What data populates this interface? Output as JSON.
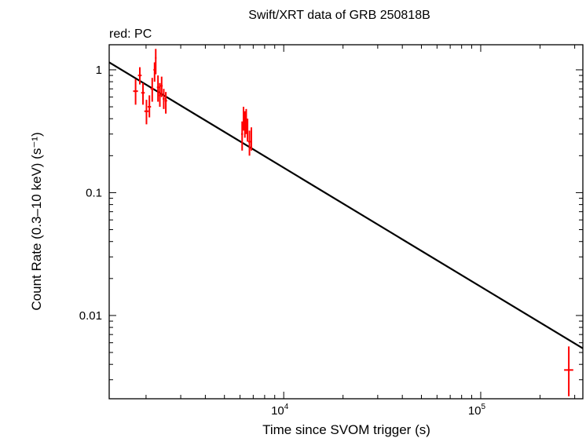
{
  "chart_data": {
    "type": "scatter",
    "title": "Swift/XRT data of GRB 250818B",
    "subtitle": "red: PC",
    "xlabel": "Time since SVOM trigger (s)",
    "ylabel": "Count Rate (0.3–10 keV) (s⁻¹)",
    "xscale": "log",
    "yscale": "log",
    "xlim": [
      1300,
      330000
    ],
    "ylim": [
      0.0021,
      1.6
    ],
    "x_ticklabels": [
      {
        "value": 10000,
        "base": "10",
        "exp": "4"
      },
      {
        "value": 100000,
        "base": "10",
        "exp": "5"
      }
    ],
    "y_ticklabels": [
      {
        "value": 1,
        "label": "1"
      },
      {
        "value": 0.1,
        "label": "0.1"
      },
      {
        "value": 0.01,
        "label": "0.01"
      }
    ],
    "grid": false,
    "series": [
      {
        "mode": "points",
        "color": "#ff0000",
        "points": [
          {
            "x": 1770,
            "xlo": 1720,
            "xhi": 1820,
            "y": 0.67,
            "ylo": 0.52,
            "yhi": 0.84
          },
          {
            "x": 1860,
            "xlo": 1820,
            "xhi": 1900,
            "y": 0.9,
            "ylo": 0.76,
            "yhi": 1.05
          },
          {
            "x": 1930,
            "xlo": 1890,
            "xhi": 1970,
            "y": 0.65,
            "ylo": 0.52,
            "yhi": 0.78
          },
          {
            "x": 2010,
            "xlo": 1960,
            "xhi": 2060,
            "y": 0.46,
            "ylo": 0.36,
            "yhi": 0.57
          },
          {
            "x": 2080,
            "xlo": 2040,
            "xhi": 2120,
            "y": 0.5,
            "ylo": 0.41,
            "yhi": 0.62
          },
          {
            "x": 2150,
            "xlo": 2110,
            "xhi": 2190,
            "y": 0.7,
            "ylo": 0.55,
            "yhi": 0.86
          },
          {
            "x": 2210,
            "xlo": 2180,
            "xhi": 2240,
            "y": 1.0,
            "ylo": 0.8,
            "yhi": 1.15
          },
          {
            "x": 2240,
            "xlo": 2220,
            "xhi": 2260,
            "y": 1.25,
            "ylo": 0.92,
            "yhi": 1.48
          },
          {
            "x": 2300,
            "xlo": 2270,
            "xhi": 2330,
            "y": 0.72,
            "ylo": 0.55,
            "yhi": 0.9
          },
          {
            "x": 2350,
            "xlo": 2320,
            "xhi": 2380,
            "y": 0.62,
            "ylo": 0.5,
            "yhi": 0.78
          },
          {
            "x": 2400,
            "xlo": 2370,
            "xhi": 2430,
            "y": 0.74,
            "ylo": 0.6,
            "yhi": 0.88
          },
          {
            "x": 2460,
            "xlo": 2430,
            "xhi": 2490,
            "y": 0.58,
            "ylo": 0.48,
            "yhi": 0.7
          },
          {
            "x": 2520,
            "xlo": 2490,
            "xhi": 2560,
            "y": 0.56,
            "ylo": 0.44,
            "yhi": 0.66
          },
          {
            "x": 6150,
            "xlo": 6080,
            "xhi": 6220,
            "y": 0.3,
            "ylo": 0.22,
            "yhi": 0.38
          },
          {
            "x": 6250,
            "xlo": 6200,
            "xhi": 6300,
            "y": 0.42,
            "ylo": 0.32,
            "yhi": 0.5
          },
          {
            "x": 6350,
            "xlo": 6300,
            "xhi": 6400,
            "y": 0.36,
            "ylo": 0.28,
            "yhi": 0.46
          },
          {
            "x": 6450,
            "xlo": 6400,
            "xhi": 6500,
            "y": 0.4,
            "ylo": 0.3,
            "yhi": 0.48
          },
          {
            "x": 6550,
            "xlo": 6500,
            "xhi": 6600,
            "y": 0.33,
            "ylo": 0.26,
            "yhi": 0.4
          },
          {
            "x": 6700,
            "xlo": 6600,
            "xhi": 6800,
            "y": 0.26,
            "ylo": 0.2,
            "yhi": 0.32
          },
          {
            "x": 6850,
            "xlo": 6800,
            "xhi": 6900,
            "y": 0.28,
            "ylo": 0.22,
            "yhi": 0.34
          },
          {
            "x": 280000,
            "xlo": 265000,
            "xhi": 295000,
            "y": 0.0036,
            "ylo": 0.0022,
            "yhi": 0.0056
          }
        ]
      },
      {
        "mode": "line",
        "color": "#000000",
        "points": [
          {
            "x": 1300,
            "y": 1.15
          },
          {
            "x": 330000,
            "y": 0.0054
          }
        ]
      }
    ]
  }
}
